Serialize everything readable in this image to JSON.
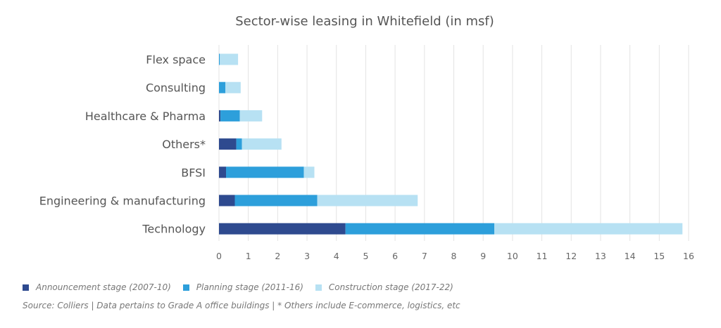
{
  "chart_data": {
    "type": "bar",
    "orientation": "horizontal",
    "stacked": true,
    "title": "Sector-wise leasing in Whitefield (in msf)",
    "xlabel": "",
    "ylabel": "",
    "xlim": [
      0,
      16
    ],
    "xticks": [
      "0",
      "1",
      "2",
      "3",
      "4",
      "5",
      "6",
      "7",
      "8",
      "9",
      "10",
      "11",
      "12",
      "13",
      "14",
      "15",
      "16"
    ],
    "grid": "vertical",
    "legend_position": "bottom-left",
    "categories": [
      "Flex space",
      "Consulting",
      "Healthcare & Pharma",
      "Others*",
      "BFSI",
      "Engineering & manufacturing",
      "Technology"
    ],
    "series": [
      {
        "name": "Announcement stage (2007-10)",
        "color": "#2e4a8f",
        "values": [
          0,
          0,
          0.05,
          0.59,
          0.24,
          0.54,
          4.31
        ]
      },
      {
        "name": "Planning stage (2011-16)",
        "color": "#2d9fdb",
        "values": [
          0.03,
          0.22,
          0.66,
          0.19,
          2.65,
          2.81,
          5.07
        ]
      },
      {
        "name": "Construction stage (2017-22)",
        "color": "#b7e1f3",
        "values": [
          0.62,
          0.52,
          0.76,
          1.35,
          0.36,
          3.42,
          6.41
        ]
      }
    ],
    "source": "Source: Colliers | Data pertains to Grade A office buildings | * Others include E-commerce, logistics, etc"
  }
}
